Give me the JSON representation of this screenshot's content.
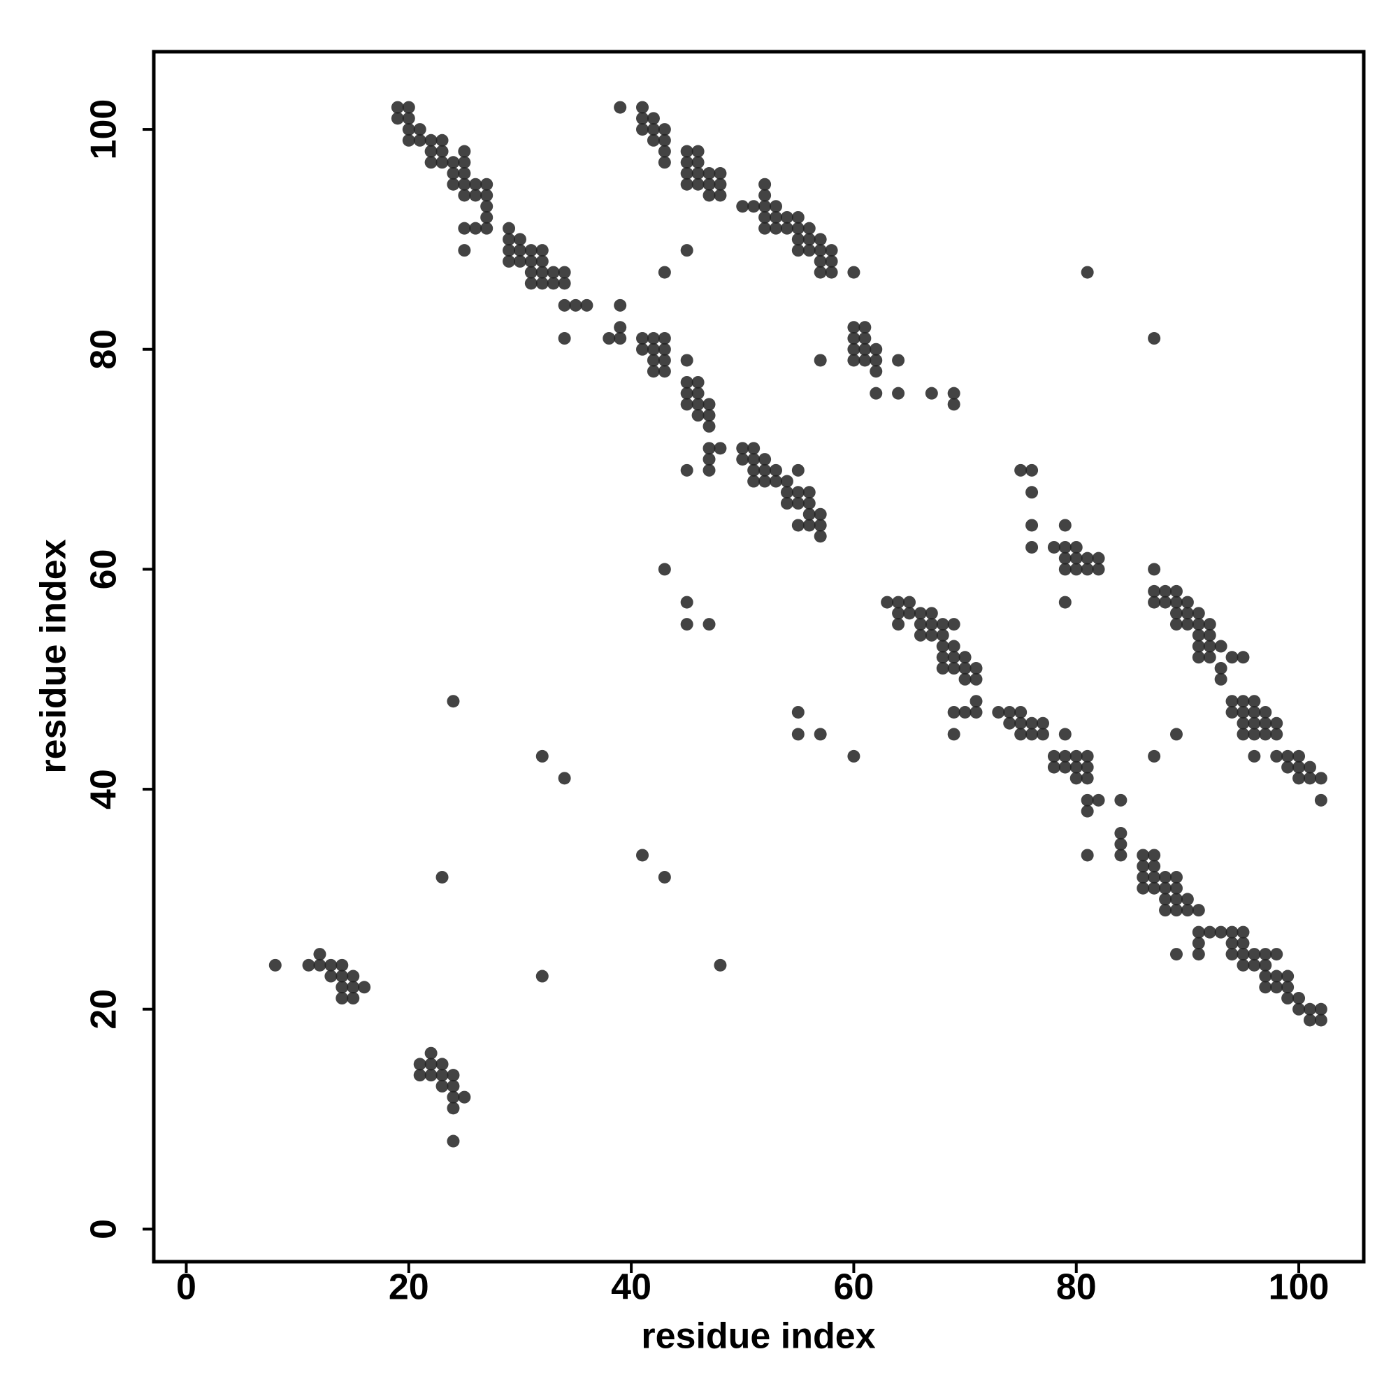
{
  "chart_data": {
    "type": "scatter",
    "xlabel": "residue index",
    "ylabel": "residue index",
    "color": "#222222",
    "xlim": [
      -2.92,
      105.84
    ],
    "ylim": [
      -2.96,
      107.06
    ],
    "xticks": [
      0,
      20,
      40,
      60,
      80,
      100
    ],
    "yticks": [
      0,
      20,
      40,
      60,
      80,
      100
    ],
    "x": [
      19,
      20,
      19,
      20,
      20,
      21,
      20,
      21,
      22,
      22,
      23,
      23,
      22,
      23,
      24,
      24,
      25,
      25,
      24,
      25,
      25,
      26,
      25,
      26,
      27,
      27,
      27,
      27,
      26,
      27,
      25,
      25,
      29,
      29,
      30,
      29,
      30,
      31,
      32,
      29,
      30,
      31,
      32,
      31,
      32,
      33,
      34,
      31,
      32,
      33,
      34,
      34,
      35,
      36,
      34,
      39,
      41,
      41,
      42,
      41,
      42,
      43,
      42,
      43,
      43,
      43,
      45,
      46,
      45,
      46,
      45,
      46,
      47,
      48,
      46,
      47,
      48,
      45,
      47,
      48,
      50,
      51,
      52,
      52,
      52,
      53,
      52,
      53,
      54,
      55,
      52,
      53,
      54,
      55,
      56,
      55,
      56,
      57,
      55,
      56,
      57,
      58,
      57,
      58,
      57,
      58,
      60,
      45,
      43,
      81,
      87,
      39,
      38,
      39,
      39,
      41,
      42,
      43,
      41,
      42,
      43,
      42,
      43,
      42,
      43,
      45,
      45,
      46,
      45,
      46,
      45,
      46,
      47,
      46,
      47,
      47,
      47,
      48,
      47,
      47,
      45,
      50,
      51,
      50,
      51,
      52,
      51,
      52,
      53,
      51,
      52,
      53,
      54,
      55,
      54,
      55,
      56,
      54,
      55,
      56,
      56,
      57,
      55,
      56,
      57,
      57,
      43,
      45,
      45,
      47,
      60,
      61,
      60,
      61,
      60,
      61,
      62,
      60,
      61,
      62,
      62,
      57,
      64,
      62,
      64,
      67,
      69,
      69,
      75,
      76,
      76,
      76,
      76,
      78,
      79,
      79,
      80,
      79,
      80,
      81,
      82,
      79,
      80,
      81,
      82,
      79,
      87,
      87,
      88,
      89,
      87,
      88,
      89,
      90,
      89,
      90,
      91,
      89,
      90,
      91,
      92,
      91,
      92,
      91,
      92,
      93,
      91,
      92,
      94,
      95,
      93,
      93,
      94,
      95,
      96,
      94,
      95,
      96,
      97,
      95,
      96,
      97,
      98,
      95,
      96,
      97,
      98,
      96,
      98,
      99,
      100,
      99,
      100,
      101,
      100,
      101,
      102,
      102,
      89,
      87,
      63,
      64,
      65,
      64,
      65,
      66,
      67,
      64,
      66,
      67,
      68,
      69,
      66,
      67,
      68,
      68,
      69,
      68,
      69,
      70,
      68,
      69,
      70,
      71,
      70,
      71,
      71,
      69,
      70,
      71,
      69,
      60,
      55,
      55,
      57,
      73,
      74,
      75,
      74,
      75,
      76,
      77,
      75,
      76,
      77,
      79,
      78,
      79,
      80,
      81,
      78,
      79,
      80,
      81,
      80,
      81,
      81,
      82,
      84,
      81,
      84,
      84,
      84,
      81,
      86,
      87,
      86,
      87,
      86,
      87,
      88,
      89,
      86,
      87,
      88,
      89,
      88,
      89,
      90,
      88,
      89,
      90,
      91,
      91,
      92,
      93,
      94,
      95,
      91,
      94,
      95,
      89,
      91,
      94,
      95,
      96,
      97,
      95,
      96,
      97,
      98,
      97,
      98,
      99,
      97,
      98,
      99,
      99,
      100,
      100,
      101,
      102,
      101,
      102,
      8,
      11,
      12,
      12,
      13,
      14,
      13,
      14,
      15,
      14,
      15,
      16,
      14,
      15,
      21,
      22,
      22,
      23,
      21,
      22,
      23,
      24,
      23,
      24,
      24,
      25,
      24,
      24,
      24,
      32,
      34,
      23,
      41,
      43,
      32,
      48
    ],
    "values": [
      102,
      102,
      101,
      101,
      100,
      100,
      99,
      99,
      99,
      98,
      98,
      99,
      97,
      97,
      97,
      96,
      96,
      97,
      95,
      95,
      98,
      95,
      94,
      94,
      95,
      94,
      93,
      92,
      91,
      91,
      91,
      89,
      91,
      90,
      90,
      89,
      89,
      89,
      89,
      88,
      88,
      88,
      88,
      87,
      87,
      87,
      87,
      86,
      86,
      86,
      86,
      84,
      84,
      84,
      81,
      102,
      102,
      101,
      101,
      100,
      100,
      100,
      99,
      99,
      98,
      97,
      98,
      98,
      97,
      97,
      96,
      96,
      96,
      96,
      95,
      95,
      95,
      95,
      94,
      94,
      93,
      93,
      95,
      94,
      93,
      93,
      92,
      92,
      92,
      92,
      91,
      91,
      91,
      91,
      91,
      90,
      90,
      90,
      89,
      89,
      89,
      89,
      88,
      88,
      87,
      87,
      87,
      89,
      87,
      87,
      81,
      84,
      81,
      81,
      82,
      81,
      81,
      81,
      80,
      80,
      80,
      79,
      79,
      78,
      78,
      79,
      77,
      77,
      76,
      76,
      75,
      75,
      75,
      74,
      74,
      73,
      71,
      71,
      70,
      69,
      69,
      71,
      71,
      70,
      70,
      70,
      69,
      69,
      69,
      68,
      68,
      68,
      68,
      69,
      67,
      67,
      67,
      66,
      66,
      66,
      65,
      65,
      64,
      64,
      64,
      63,
      60,
      57,
      55,
      55,
      82,
      82,
      81,
      81,
      80,
      80,
      80,
      79,
      79,
      79,
      78,
      79,
      79,
      76,
      76,
      76,
      76,
      75,
      69,
      69,
      67,
      64,
      62,
      62,
      64,
      62,
      62,
      61,
      61,
      61,
      61,
      60,
      60,
      60,
      60,
      57,
      60,
      58,
      58,
      58,
      57,
      57,
      57,
      57,
      56,
      56,
      56,
      55,
      55,
      55,
      55,
      54,
      54,
      53,
      53,
      53,
      52,
      52,
      52,
      52,
      51,
      50,
      48,
      48,
      48,
      47,
      47,
      47,
      47,
      46,
      46,
      46,
      46,
      45,
      45,
      45,
      45,
      43,
      43,
      43,
      43,
      42,
      42,
      42,
      41,
      41,
      41,
      39,
      45,
      43,
      57,
      57,
      57,
      56,
      56,
      56,
      56,
      55,
      55,
      55,
      55,
      55,
      54,
      54,
      54,
      53,
      53,
      52,
      52,
      52,
      51,
      51,
      51,
      51,
      50,
      50,
      48,
      47,
      47,
      47,
      45,
      43,
      47,
      45,
      45,
      47,
      47,
      47,
      46,
      46,
      46,
      46,
      45,
      45,
      45,
      45,
      43,
      43,
      43,
      43,
      42,
      42,
      42,
      42,
      41,
      41,
      39,
      39,
      39,
      38,
      36,
      35,
      34,
      34,
      34,
      34,
      33,
      33,
      32,
      32,
      32,
      32,
      31,
      31,
      31,
      31,
      30,
      30,
      30,
      29,
      29,
      29,
      29,
      27,
      27,
      27,
      27,
      27,
      26,
      26,
      26,
      25,
      25,
      25,
      25,
      25,
      25,
      24,
      24,
      24,
      25,
      23,
      23,
      23,
      22,
      22,
      22,
      21,
      21,
      20,
      20,
      20,
      19,
      19,
      24,
      24,
      25,
      24,
      24,
      24,
      23,
      23,
      23,
      22,
      22,
      22,
      21,
      21,
      15,
      16,
      15,
      15,
      14,
      14,
      14,
      14,
      13,
      13,
      12,
      12,
      11,
      8,
      48,
      43,
      41,
      32,
      34,
      32,
      23,
      24
    ]
  }
}
